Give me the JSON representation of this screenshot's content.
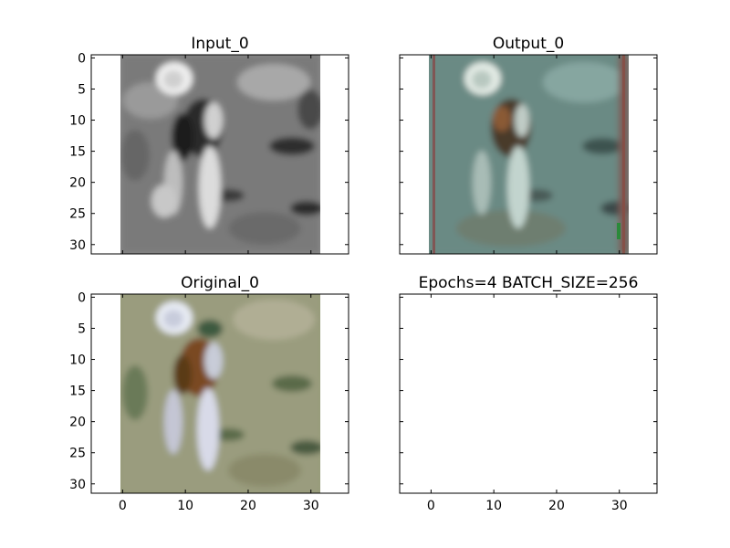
{
  "chart_data": [
    {
      "type": "image",
      "title": "Input_0",
      "xlim": [
        -5,
        36
      ],
      "ylim": [
        31.5,
        -0.5
      ],
      "yticks": [
        0,
        5,
        10,
        15,
        20,
        25,
        30
      ],
      "xticks": [],
      "image_extent": [
        -0.5,
        31.5
      ],
      "colormap": "gray",
      "palette": [
        "#4a4a4a",
        "#6b6b6b",
        "#8c8c8c",
        "#a8a8a8",
        "#c8c8c8",
        "#e6e6e6",
        "#1e1e1e"
      ],
      "subject": "figure standing in center, light head top-left"
    },
    {
      "type": "image",
      "title": "Output_0",
      "xlim": [
        -5,
        36
      ],
      "ylim": [
        31.5,
        -0.5
      ],
      "yticks": [],
      "xticks": [],
      "image_extent": [
        -0.5,
        31.5
      ],
      "colormap": "rgb",
      "palette": [
        "#4f6a64",
        "#6d8c86",
        "#8eaaa4",
        "#b7ccc6",
        "#3a2e24",
        "#7a4e2a",
        "#a64a3a"
      ],
      "subject": "reconstructed teal-tinted image of figure"
    },
    {
      "type": "image",
      "title": "Original_0",
      "xlim": [
        -5,
        36
      ],
      "ylim": [
        31.5,
        -0.5
      ],
      "yticks": [
        0,
        5,
        10,
        15,
        20,
        25,
        30
      ],
      "xticks": [
        0,
        10,
        20,
        30
      ],
      "image_extent": [
        -0.5,
        31.5
      ],
      "colormap": "rgb",
      "palette": [
        "#7c8060",
        "#969a78",
        "#a8a88c",
        "#5a6a4a",
        "#c8ccd8",
        "#7a4a20",
        "#d8dae8"
      ],
      "subject": "original color image, figure with brown body and pale legs"
    },
    {
      "type": "empty",
      "title": "Epochs=4 BATCH_SIZE=256",
      "xlim": [
        -5,
        36
      ],
      "ylim": [
        31.5,
        -0.5
      ],
      "yticks": [],
      "xticks": [
        0,
        10,
        20,
        30
      ]
    }
  ]
}
